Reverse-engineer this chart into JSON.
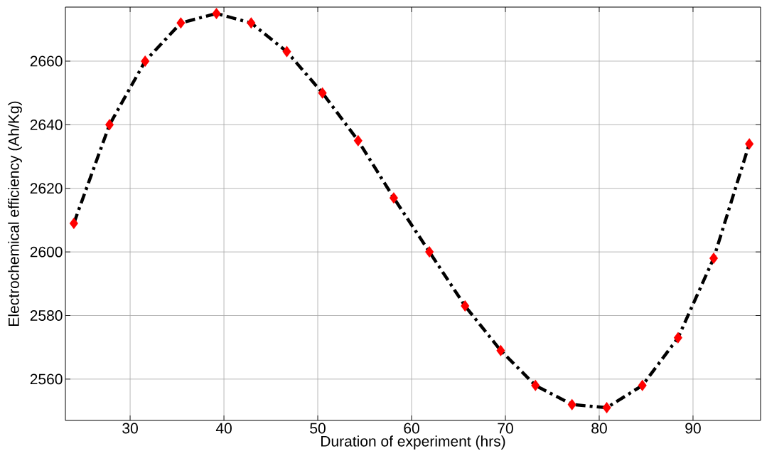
{
  "chart_data": {
    "type": "line",
    "xlabel": "Duration of experiment (hrs)",
    "ylabel": "Electrochemical efficiency (Ah/Kg)",
    "x": [
      24,
      27.8,
      31.6,
      35.4,
      39.2,
      42.9,
      46.7,
      50.5,
      54.3,
      58.1,
      61.9,
      65.7,
      69.5,
      73.2,
      77.1,
      80.8,
      84.6,
      88.4,
      92.2,
      96
    ],
    "series": [
      {
        "color": "#000000",
        "values": [
          2609,
          2640,
          2660,
          2672,
          2675,
          2672,
          2663,
          2650,
          2635,
          2617,
          2600,
          2583,
          2569,
          2558,
          2552,
          2551,
          2558,
          2573,
          2598,
          2634
        ]
      }
    ],
    "xlim": [
      23.1,
      97.2
    ],
    "ylim": [
      2547,
      2677
    ],
    "xticks": [
      30,
      40,
      50,
      60,
      70,
      80,
      90
    ],
    "yticks": [
      2560,
      2580,
      2600,
      2620,
      2640,
      2660
    ],
    "grid": true,
    "marker": "diamond",
    "line_style": "dashdot"
  }
}
